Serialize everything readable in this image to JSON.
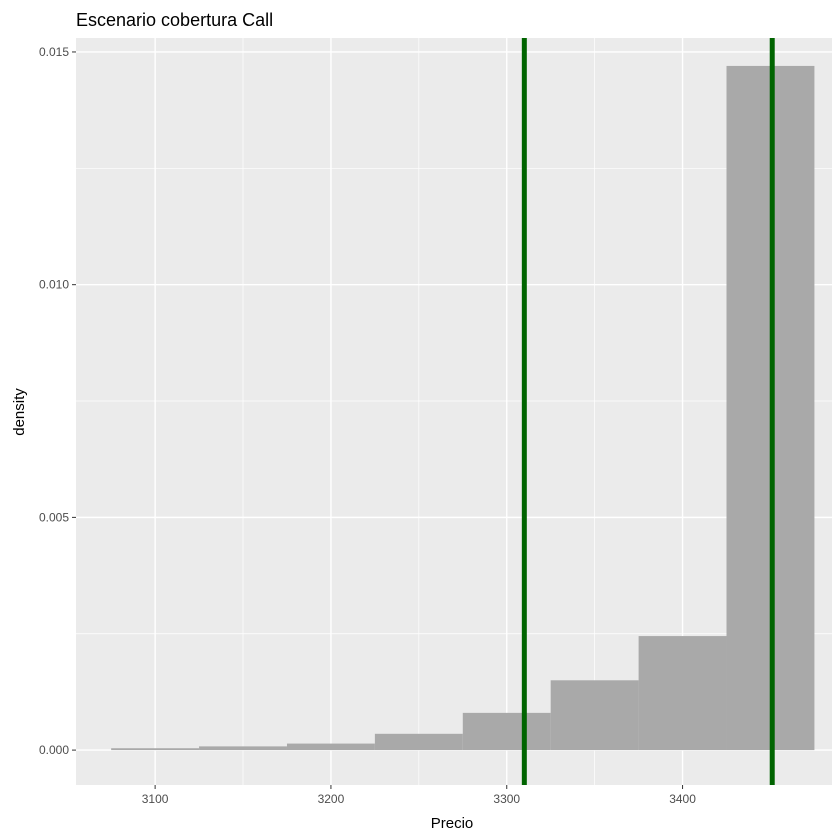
{
  "chart_data": {
    "type": "bar",
    "title": "Escenario cobertura Call",
    "xlabel": "Precio",
    "ylabel": "density",
    "xlim": [
      3055,
      3485
    ],
    "ylim": [
      -0.00075,
      0.0153
    ],
    "x_ticks": [
      3100,
      3200,
      3300,
      3400
    ],
    "y_ticks": [
      0.0,
      0.005,
      0.01,
      0.015
    ],
    "x_tick_labels": [
      "3100",
      "3200",
      "3300",
      "3400"
    ],
    "y_tick_labels": [
      "0.000",
      "0.005",
      "0.010",
      "0.015"
    ],
    "bins": [
      {
        "x0": 3075,
        "x1": 3125,
        "density": 4e-05
      },
      {
        "x0": 3125,
        "x1": 3175,
        "density": 8e-05
      },
      {
        "x0": 3175,
        "x1": 3225,
        "density": 0.00014
      },
      {
        "x0": 3225,
        "x1": 3275,
        "density": 0.00035
      },
      {
        "x0": 3275,
        "x1": 3325,
        "density": 0.0008
      },
      {
        "x0": 3325,
        "x1": 3375,
        "density": 0.0015
      },
      {
        "x0": 3375,
        "x1": 3425,
        "density": 0.00245
      },
      {
        "x0": 3425,
        "x1": 3475,
        "density": 0.0147
      }
    ],
    "vlines": [
      3310,
      3451
    ],
    "grid": true,
    "colors": {
      "panel": "#ebebeb",
      "grid": "#ffffff",
      "bar": "#a9a9a9",
      "vline": "#006400",
      "tick_mark": "#333333"
    }
  }
}
